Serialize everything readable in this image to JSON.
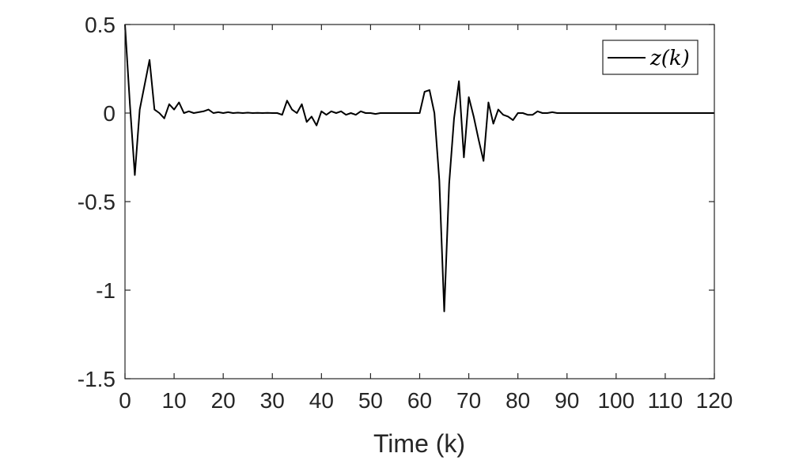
{
  "chart_data": {
    "type": "line",
    "title": "",
    "xlabel": "Time (k)",
    "ylabel": "",
    "xlim": [
      0,
      120
    ],
    "ylim": [
      -1.5,
      0.5
    ],
    "xticks": [
      "0",
      "10",
      "20",
      "30",
      "40",
      "50",
      "60",
      "70",
      "80",
      "90",
      "100",
      "110",
      "120"
    ],
    "yticks": [
      "0.5",
      "0",
      "-0.5",
      "-1",
      "-1.5"
    ],
    "grid": false,
    "legend_position": "top-right",
    "series": [
      {
        "name": "z(k)",
        "color": "#000000",
        "x": [
          0,
          1,
          2,
          3,
          4,
          5,
          6,
          7,
          8,
          9,
          10,
          11,
          12,
          13,
          14,
          15,
          16,
          17,
          18,
          19,
          20,
          21,
          22,
          23,
          24,
          25,
          26,
          27,
          28,
          29,
          30,
          31,
          32,
          33,
          34,
          35,
          36,
          37,
          38,
          39,
          40,
          41,
          42,
          43,
          44,
          45,
          46,
          47,
          48,
          49,
          50,
          51,
          52,
          53,
          54,
          55,
          56,
          57,
          58,
          59,
          60,
          61,
          62,
          63,
          64,
          65,
          66,
          67,
          68,
          69,
          70,
          71,
          72,
          73,
          74,
          75,
          76,
          77,
          78,
          79,
          80,
          81,
          82,
          83,
          84,
          85,
          86,
          87,
          88,
          89,
          90,
          91,
          92,
          93,
          94,
          95,
          96,
          97,
          98,
          99,
          100,
          101,
          102,
          103,
          104,
          105,
          106,
          107,
          108,
          109,
          110,
          111,
          112,
          113,
          114,
          115,
          116,
          117,
          118,
          119,
          120
        ],
        "y": [
          0.5,
          0.05,
          -0.35,
          0.02,
          0.16,
          0.3,
          0.02,
          0.0,
          -0.03,
          0.05,
          0.02,
          0.06,
          0.0,
          0.01,
          0.0,
          0.005,
          0.01,
          0.02,
          0.0,
          0.005,
          0.0,
          0.005,
          0.0,
          0.002,
          0.0,
          0.002,
          0.0,
          0.001,
          0.0,
          0.001,
          0.0,
          0.0,
          -0.01,
          0.07,
          0.02,
          0.0,
          0.05,
          -0.05,
          -0.02,
          -0.07,
          0.01,
          -0.01,
          0.01,
          0.0,
          0.01,
          -0.01,
          0.0,
          -0.01,
          0.01,
          0.0,
          0.0,
          -0.005,
          0.0,
          0.0,
          0.0,
          0.0,
          0.0,
          0.0,
          0.0,
          0.0,
          0.0,
          0.12,
          0.13,
          0.0,
          -0.38,
          -1.12,
          -0.4,
          -0.03,
          0.18,
          -0.25,
          0.09,
          -0.02,
          -0.15,
          -0.27,
          0.06,
          -0.06,
          0.02,
          -0.01,
          -0.02,
          -0.04,
          0.0,
          0.0,
          -0.01,
          -0.01,
          0.01,
          0.0,
          0.0,
          0.005,
          0.0,
          0.0,
          0.0,
          0.0,
          0.0,
          0.0,
          0.0,
          0.0,
          0.0,
          0.0,
          0.0,
          0.0,
          0.0,
          0.0,
          0.0,
          0.0,
          0.0,
          0.0,
          0.0,
          0.0,
          0.0,
          0.0,
          0.0,
          0.0,
          0.0,
          0.0,
          0.0,
          0.0,
          0.0,
          0.0,
          0.0,
          0.0,
          0.0
        ]
      }
    ]
  },
  "legend": {
    "prefix": "z(",
    "var": "k",
    "suffix": ")"
  }
}
